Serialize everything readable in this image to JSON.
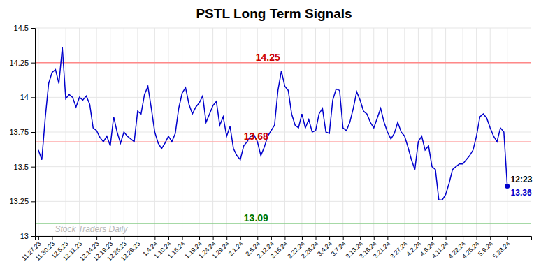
{
  "chart_data": {
    "type": "line",
    "title": "PSTL Long Term Signals",
    "categories": [
      "11.27.23",
      null,
      null,
      null,
      "11.30.23",
      null,
      null,
      null,
      "12.5.23",
      null,
      null,
      null,
      "12.11.23",
      null,
      null,
      null,
      null,
      "12.14.23",
      null,
      null,
      null,
      "12.19.23",
      null,
      null,
      null,
      "12.26.23",
      null,
      null,
      null,
      "12.29.23",
      null,
      null,
      null,
      null,
      "1.4.24",
      null,
      null,
      null,
      "1.10.24",
      null,
      null,
      null,
      "1.16.24",
      null,
      null,
      null,
      null,
      "1.19.24",
      null,
      null,
      null,
      "1.24.24",
      null,
      null,
      null,
      "1.29.24",
      null,
      null,
      null,
      "2.1.24",
      null,
      null,
      null,
      null,
      "2.6.24",
      null,
      null,
      null,
      "2.12.24",
      null,
      null,
      null,
      "2.15.24",
      null,
      null,
      null,
      null,
      "2.22.24",
      null,
      null,
      null,
      "2.28.24",
      null,
      null,
      null,
      "3.4.24",
      null,
      null,
      null,
      "3.7.24",
      null,
      null,
      null,
      null,
      "3.13.24",
      null,
      null,
      null,
      "3.18.24",
      null,
      null,
      null,
      "3.21.24",
      null,
      null,
      null,
      null,
      "3.27.24",
      null,
      null,
      null,
      "4.2.24",
      null,
      null,
      null,
      "4.8.24",
      null,
      null,
      null,
      "4.11.24",
      null,
      null,
      null,
      null,
      "4.22.24",
      null,
      null,
      null,
      "4.25.24",
      null,
      null,
      null,
      "5.9.24",
      null,
      null,
      null,
      null,
      "5.23.24"
    ],
    "values": [
      13.62,
      13.55,
      13.85,
      14.1,
      14.18,
      14.2,
      14.1,
      14.36,
      13.99,
      14.02,
      14.0,
      13.93,
      14.0,
      13.98,
      14.01,
      13.95,
      13.78,
      13.76,
      13.71,
      13.68,
      13.72,
      13.65,
      13.86,
      13.75,
      13.67,
      13.75,
      13.72,
      13.7,
      13.68,
      13.9,
      13.88,
      14.02,
      14.08,
      13.92,
      13.75,
      13.67,
      13.63,
      13.67,
      13.72,
      13.68,
      13.74,
      13.92,
      14.03,
      14.07,
      13.95,
      13.88,
      13.93,
      13.96,
      14.01,
      13.82,
      13.88,
      13.94,
      13.97,
      13.8,
      13.86,
      13.72,
      13.79,
      13.63,
      13.58,
      13.55,
      13.65,
      13.68,
      13.72,
      13.73,
      13.68,
      13.58,
      13.64,
      13.72,
      13.76,
      13.8,
      14.05,
      14.19,
      14.08,
      14.05,
      13.88,
      13.8,
      13.78,
      13.88,
      13.78,
      13.84,
      13.75,
      13.76,
      13.88,
      13.92,
      13.75,
      13.74,
      13.98,
      14.06,
      14.05,
      13.78,
      13.76,
      13.82,
      13.92,
      14.04,
      13.98,
      13.9,
      13.88,
      13.82,
      13.78,
      13.85,
      13.92,
      13.82,
      13.75,
      13.7,
      13.74,
      13.82,
      13.75,
      13.72,
      13.64,
      13.55,
      13.48,
      13.68,
      13.72,
      13.62,
      13.65,
      13.5,
      13.48,
      13.26,
      13.26,
      13.3,
      13.38,
      13.48,
      13.5,
      13.52,
      13.52,
      13.55,
      13.58,
      13.62,
      13.72,
      13.86,
      13.88,
      13.85,
      13.78,
      13.72,
      13.68,
      13.78,
      13.75,
      13.36
    ],
    "color": "#0000cc",
    "ylim": [
      13.0,
      14.5
    ],
    "yticks": [
      13,
      13.25,
      13.5,
      13.75,
      14,
      14.25,
      14.5
    ],
    "grid": true,
    "hlines": [
      {
        "value": 14.25,
        "label": "14.25",
        "color": "#ff8888",
        "label_color": "#cc0000"
      },
      {
        "value": 13.68,
        "label": "13.68",
        "color": "#ffaaaa",
        "label_color": "#cc0000"
      },
      {
        "value": 13.09,
        "label": "13.09",
        "color": "#88cc88",
        "label_color": "#007700"
      }
    ],
    "annotations": [
      {
        "text": "12:23"
      },
      {
        "text": "13.36",
        "color": "#0000cc"
      }
    ],
    "watermark": {
      "text": "Stock Traders Daily",
      "color": "#aaaaaa"
    }
  }
}
